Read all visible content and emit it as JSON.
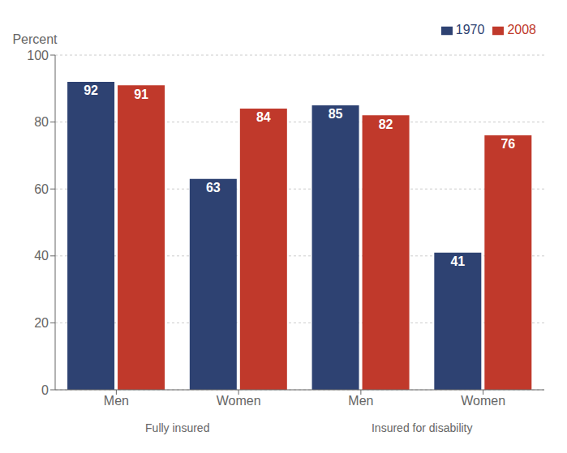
{
  "chart_data": {
    "type": "bar",
    "y_label": "Percent",
    "categories": [
      "Men",
      "Women",
      "Men",
      "Women"
    ],
    "category_groups": [
      "Fully insured",
      "Fully insured",
      "Insured for disability",
      "Insured for disability"
    ],
    "series": [
      {
        "name": "1970",
        "color": "#2E4272",
        "values": [
          92,
          63,
          85,
          41
        ]
      },
      {
        "name": "2008",
        "color": "#C0392B",
        "values": [
          91,
          84,
          82,
          76
        ]
      }
    ],
    "ylim": [
      0,
      100
    ],
    "yticks": [
      0,
      20,
      40,
      60,
      80,
      100
    ],
    "grid": true,
    "legend": "upper right",
    "data_labels": true
  }
}
